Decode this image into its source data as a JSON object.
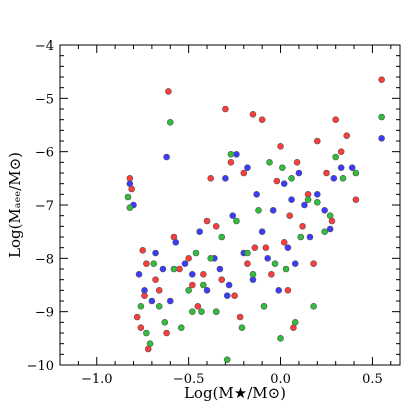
{
  "chart_data": {
    "type": "scatter",
    "xlabel": "Log(M★/M⊙)",
    "ylabel": "Log(Mₐₑₑ/M⊙)",
    "xlim": [
      -1.2,
      0.65
    ],
    "ylim": [
      -10,
      -4
    ],
    "x_ticks": [
      -1.0,
      -0.5,
      0.0,
      0.5
    ],
    "x_tick_labels": [
      "−1.0",
      "−0.5",
      "0.0",
      "0.5"
    ],
    "y_ticks": [
      -10,
      -9,
      -8,
      -7,
      -6,
      -5,
      -4
    ],
    "y_tick_labels": [
      "−10",
      "−9",
      "−8",
      "−7",
      "−6",
      "−5",
      "−4"
    ],
    "grid": false,
    "legend": "none",
    "series": [
      {
        "color": "#ff3b3b",
        "points": [
          [
            -0.82,
            -6.5
          ],
          [
            -0.81,
            -6.7
          ],
          [
            -0.61,
            -4.87
          ],
          [
            -0.75,
            -7.85
          ],
          [
            -0.73,
            -8.1
          ],
          [
            -0.68,
            -8.4
          ],
          [
            -0.66,
            -8.6
          ],
          [
            -0.78,
            -9.1
          ],
          [
            -0.76,
            -9.3
          ],
          [
            -0.74,
            -8.7
          ],
          [
            -0.72,
            -9.7
          ],
          [
            -0.55,
            -8.2
          ],
          [
            -0.5,
            -8.0
          ],
          [
            -0.48,
            -8.5
          ],
          [
            -0.45,
            -8.9
          ],
          [
            -0.42,
            -8.3
          ],
          [
            -0.4,
            -7.3
          ],
          [
            -0.38,
            -6.5
          ],
          [
            -0.35,
            -7.4
          ],
          [
            -0.32,
            -8.4
          ],
          [
            -0.3,
            -5.2
          ],
          [
            -0.27,
            -6.2
          ],
          [
            -0.25,
            -8.7
          ],
          [
            -0.22,
            -9.1
          ],
          [
            -0.2,
            -6.4
          ],
          [
            -0.18,
            -8.1
          ],
          [
            -0.15,
            -5.3
          ],
          [
            -0.14,
            -7.8
          ],
          [
            -0.1,
            -5.4
          ],
          [
            -0.08,
            -7.8
          ],
          [
            -0.05,
            -8.3
          ],
          [
            -0.02,
            -6.55
          ],
          [
            0.0,
            -5.9
          ],
          [
            0.02,
            -7.7
          ],
          [
            0.04,
            -8.6
          ],
          [
            0.05,
            -7.2
          ],
          [
            0.07,
            -9.3
          ],
          [
            0.09,
            -6.2
          ],
          [
            0.12,
            -7.4
          ],
          [
            0.15,
            -6.8
          ],
          [
            0.18,
            -8.1
          ],
          [
            0.2,
            -5.8
          ],
          [
            0.25,
            -6.4
          ],
          [
            0.28,
            -7.3
          ],
          [
            0.3,
            -5.4
          ],
          [
            0.33,
            -6.0
          ],
          [
            0.36,
            -5.7
          ],
          [
            0.41,
            -6.9
          ],
          [
            0.55,
            -4.65
          ],
          [
            -0.62,
            -9.4
          ],
          [
            -0.58,
            -7.6
          ]
        ]
      },
      {
        "color": "#3b3bff",
        "points": [
          [
            -0.82,
            -6.6
          ],
          [
            -0.8,
            -7.0
          ],
          [
            -0.77,
            -8.3
          ],
          [
            -0.74,
            -8.6
          ],
          [
            -0.7,
            -8.8
          ],
          [
            -0.68,
            -7.9
          ],
          [
            -0.64,
            -8.2
          ],
          [
            -0.62,
            -6.1
          ],
          [
            -0.6,
            -8.8
          ],
          [
            -0.57,
            -7.7
          ],
          [
            -0.52,
            -8.1
          ],
          [
            -0.48,
            -8.3
          ],
          [
            -0.44,
            -7.5
          ],
          [
            -0.4,
            -8.6
          ],
          [
            -0.36,
            -8.0
          ],
          [
            -0.33,
            -8.2
          ],
          [
            -0.3,
            -6.5
          ],
          [
            -0.28,
            -8.5
          ],
          [
            -0.26,
            -7.2
          ],
          [
            -0.24,
            -6.05
          ],
          [
            -0.2,
            -7.9
          ],
          [
            -0.18,
            -6.3
          ],
          [
            -0.15,
            -8.4
          ],
          [
            -0.13,
            -6.8
          ],
          [
            -0.1,
            -7.5
          ],
          [
            -0.07,
            -8.0
          ],
          [
            -0.04,
            -7.1
          ],
          [
            -0.01,
            -8.6
          ],
          [
            0.02,
            -6.6
          ],
          [
            0.04,
            -7.8
          ],
          [
            0.06,
            -6.9
          ],
          [
            0.08,
            -8.1
          ],
          [
            0.1,
            -6.4
          ],
          [
            0.13,
            -7.0
          ],
          [
            0.16,
            -7.6
          ],
          [
            0.2,
            -6.8
          ],
          [
            0.24,
            -7.1
          ],
          [
            0.27,
            -7.45
          ],
          [
            0.29,
            -6.5
          ],
          [
            0.33,
            -6.3
          ],
          [
            0.39,
            -6.3
          ],
          [
            0.55,
            -5.75
          ],
          [
            -0.29,
            -8.7
          ],
          [
            -0.35,
            -9.0
          ]
        ]
      },
      {
        "color": "#2fbf3a",
        "points": [
          [
            -0.83,
            -6.85
          ],
          [
            -0.82,
            -7.05
          ],
          [
            -0.6,
            -5.45
          ],
          [
            -0.76,
            -8.9
          ],
          [
            -0.73,
            -9.4
          ],
          [
            -0.71,
            -9.6
          ],
          [
            -0.69,
            -8.1
          ],
          [
            -0.66,
            -8.9
          ],
          [
            -0.63,
            -9.2
          ],
          [
            -0.58,
            -8.2
          ],
          [
            -0.54,
            -9.3
          ],
          [
            -0.5,
            -8.6
          ],
          [
            -0.46,
            -7.9
          ],
          [
            -0.43,
            -9.0
          ],
          [
            -0.38,
            -8.0
          ],
          [
            -0.35,
            -9.0
          ],
          [
            -0.32,
            -7.6
          ],
          [
            -0.29,
            -9.9
          ],
          [
            -0.27,
            -6.05
          ],
          [
            -0.24,
            -7.3
          ],
          [
            -0.21,
            -9.3
          ],
          [
            -0.18,
            -7.9
          ],
          [
            -0.15,
            -8.3
          ],
          [
            -0.12,
            -7.1
          ],
          [
            -0.09,
            -8.9
          ],
          [
            -0.06,
            -6.2
          ],
          [
            -0.03,
            -8.1
          ],
          [
            0.0,
            -9.5
          ],
          [
            0.01,
            -6.3
          ],
          [
            0.03,
            -8.2
          ],
          [
            0.06,
            -6.5
          ],
          [
            0.08,
            -9.2
          ],
          [
            0.11,
            -7.6
          ],
          [
            0.15,
            -6.9
          ],
          [
            0.18,
            -8.9
          ],
          [
            0.2,
            -6.95
          ],
          [
            0.24,
            -7.5
          ],
          [
            0.27,
            -7.2
          ],
          [
            0.3,
            -6.1
          ],
          [
            0.34,
            -6.5
          ],
          [
            0.41,
            -6.4
          ],
          [
            0.55,
            -5.35
          ],
          [
            -0.48,
            -9.0
          ],
          [
            -0.42,
            -8.5
          ]
        ]
      }
    ]
  }
}
